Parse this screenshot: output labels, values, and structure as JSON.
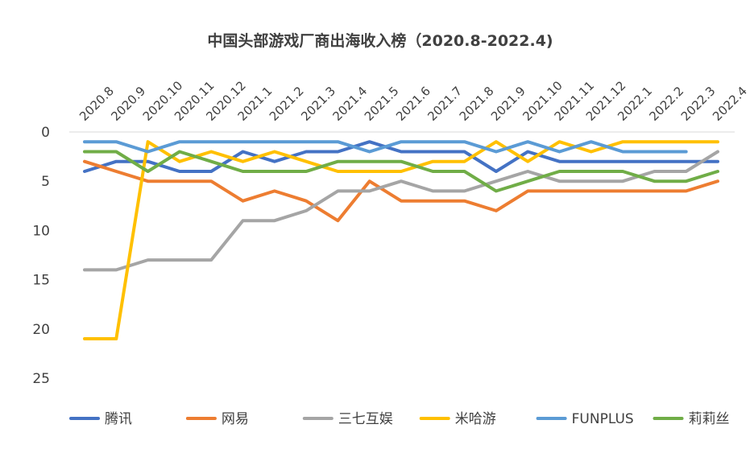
{
  "chart_data": {
    "type": "line",
    "title": "中国头部游戏厂商出海收入榜（2020.8-2022.4)",
    "xlabel": "",
    "ylabel": "",
    "categories": [
      "2020.8",
      "2020.9",
      "2020.10",
      "2020.11",
      "2020.12",
      "2021.1",
      "2021.2",
      "2021.3",
      "2021.4",
      "2021.5",
      "2021.6",
      "2021.7",
      "2021.8",
      "2021.9",
      "2021.10",
      "2021.11",
      "2021.12",
      "2022.1",
      "2022.2",
      "2022.3",
      "2022.4"
    ],
    "y_axis": {
      "reversed": true,
      "ylim": [
        0,
        25
      ],
      "ticks": [
        0,
        5,
        10,
        15,
        20,
        25
      ]
    },
    "grid": false,
    "legend_position": "bottom",
    "series": [
      {
        "name": "腾讯",
        "color": "#4472C4",
        "values": [
          4,
          3,
          3,
          4,
          4,
          2,
          3,
          2,
          2,
          1,
          2,
          2,
          2,
          4,
          2,
          3,
          3,
          3,
          3,
          3,
          3
        ]
      },
      {
        "name": "网易",
        "color": "#ED7D31",
        "values": [
          3,
          4,
          5,
          5,
          5,
          7,
          6,
          7,
          9,
          5,
          7,
          7,
          7,
          8,
          6,
          6,
          6,
          6,
          6,
          6,
          5
        ]
      },
      {
        "name": "三七互娱",
        "color": "#A5A5A5",
        "values": [
          14,
          14,
          13,
          13,
          13,
          9,
          9,
          8,
          6,
          6,
          5,
          6,
          6,
          5,
          4,
          5,
          5,
          5,
          4,
          4,
          2
        ]
      },
      {
        "name": "米哈游",
        "color": "#FFC000",
        "values": [
          21,
          21,
          1,
          3,
          2,
          3,
          2,
          3,
          4,
          4,
          4,
          3,
          3,
          1,
          3,
          1,
          2,
          1,
          1,
          1,
          1
        ]
      },
      {
        "name": "FUNPLUS",
        "color": "#5B9BD5",
        "values": [
          1,
          1,
          2,
          1,
          1,
          1,
          1,
          1,
          1,
          2,
          1,
          1,
          1,
          2,
          1,
          2,
          1,
          2,
          2,
          2,
          null
        ]
      },
      {
        "name": "莉莉丝",
        "color": "#70AD47",
        "values": [
          2,
          2,
          4,
          2,
          3,
          4,
          4,
          4,
          3,
          3,
          3,
          4,
          4,
          6,
          5,
          4,
          4,
          4,
          5,
          5,
          4
        ]
      }
    ]
  }
}
